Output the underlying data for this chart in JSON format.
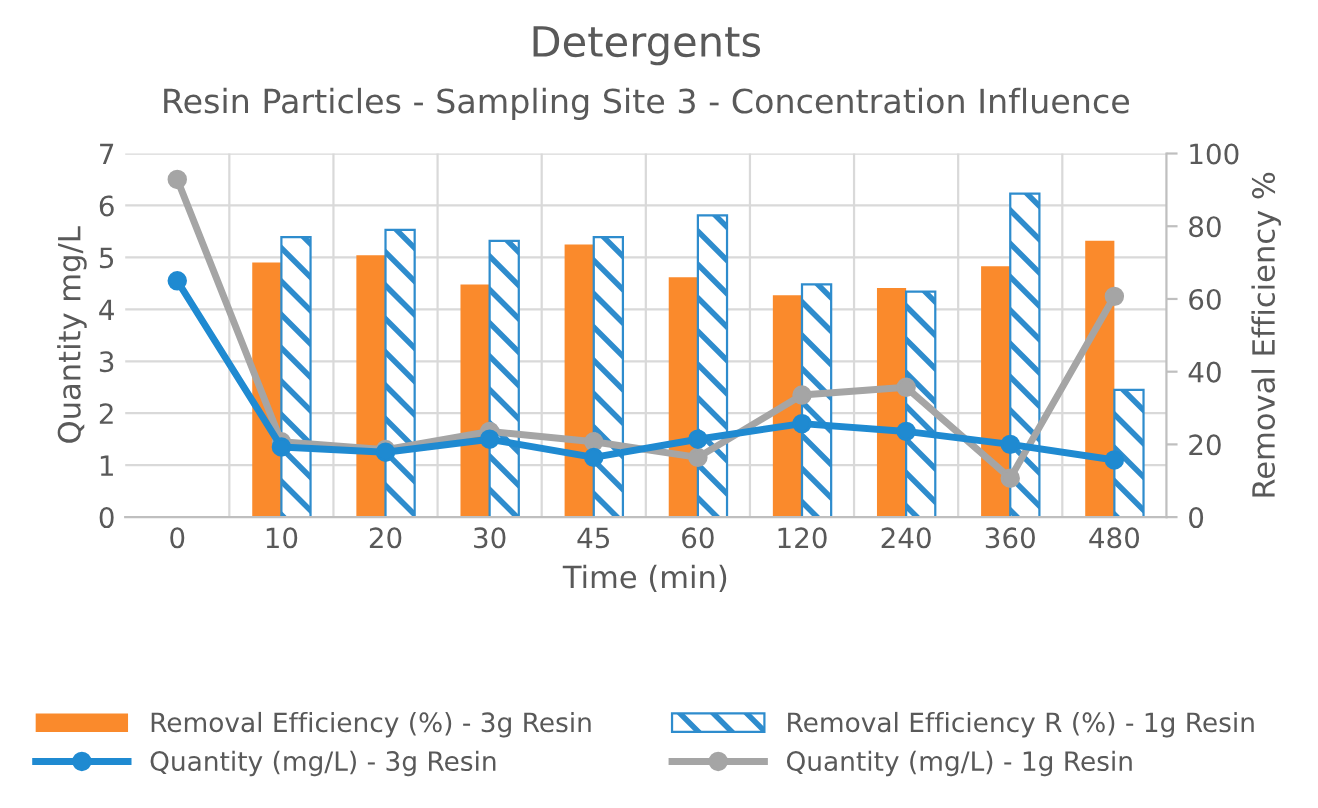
{
  "chart_data": {
    "type": "bar",
    "title": "Detergents",
    "subtitle": "Resin Particles - Sampling Site 3 - Concentration Influence",
    "xlabel": "Time (min)",
    "ylabel": "Quantity mg/L",
    "y2label": "Removal Efficiency %",
    "categories": [
      "0",
      "10",
      "20",
      "30",
      "45",
      "60",
      "120",
      "240",
      "360",
      "480"
    ],
    "series": [
      {
        "name": "Removal Efficiency (%) - 3g Resin",
        "type": "bar",
        "axis": "y2",
        "color": "#fa8a2c",
        "values": [
          null,
          70,
          72,
          64,
          75,
          66,
          61,
          63,
          69,
          76
        ]
      },
      {
        "name": "Removal Efficiency R (%) - 1g Resin",
        "type": "bar",
        "axis": "y2",
        "color": "#2e8ccd",
        "values": [
          null,
          77,
          79,
          76,
          77,
          83,
          64,
          62,
          89,
          35
        ]
      },
      {
        "name": "Quantity (mg/L) - 3g Resin",
        "type": "line",
        "axis": "y",
        "color": "#1f8ad1",
        "values": [
          4.55,
          1.35,
          1.25,
          1.5,
          1.15,
          1.5,
          1.8,
          1.65,
          1.4,
          1.1
        ]
      },
      {
        "name": "Quantity (mg/L) - 1g Resin",
        "type": "line",
        "axis": "y",
        "color": "#a5a5a5",
        "values": [
          6.5,
          1.45,
          1.3,
          1.65,
          1.45,
          1.15,
          2.35,
          2.5,
          0.75,
          4.25
        ]
      }
    ],
    "ylim": [
      0,
      7
    ],
    "yticks": [
      0,
      1,
      2,
      3,
      4,
      5,
      6,
      7
    ],
    "y2lim": [
      0,
      100
    ],
    "y2ticks": [
      0,
      20,
      40,
      60,
      80,
      100
    ],
    "grid": true,
    "legend": "bottom",
    "marker": "circle",
    "line_style": "solid"
  }
}
